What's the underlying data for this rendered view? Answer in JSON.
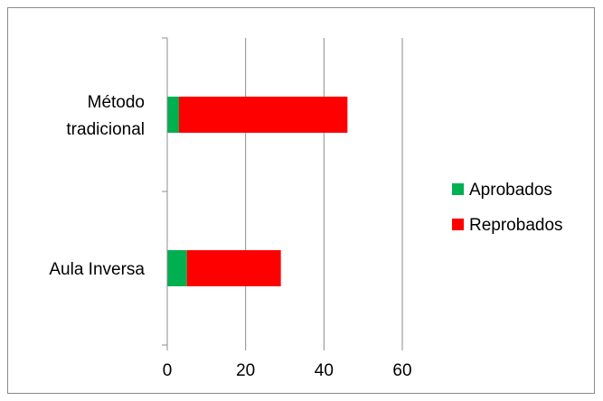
{
  "chart_data": {
    "type": "bar",
    "orientation": "horizontal",
    "stacked": true,
    "categories": [
      "Método tradicional",
      "Aula Inversa"
    ],
    "category_label_lines": [
      [
        "Método",
        "tradicional"
      ],
      [
        "Aula Inversa"
      ]
    ],
    "series": [
      {
        "name": "Aprobados",
        "values": [
          3,
          5
        ],
        "color": "#00b050"
      },
      {
        "name": "Reprobados",
        "values": [
          43,
          24
        ],
        "color": "#ff0000"
      }
    ],
    "xlim": [
      0,
      60
    ],
    "xticks": [
      0,
      20,
      40,
      60
    ],
    "grid": true,
    "legend_position": "right",
    "title": "",
    "xlabel": "",
    "ylabel": ""
  }
}
